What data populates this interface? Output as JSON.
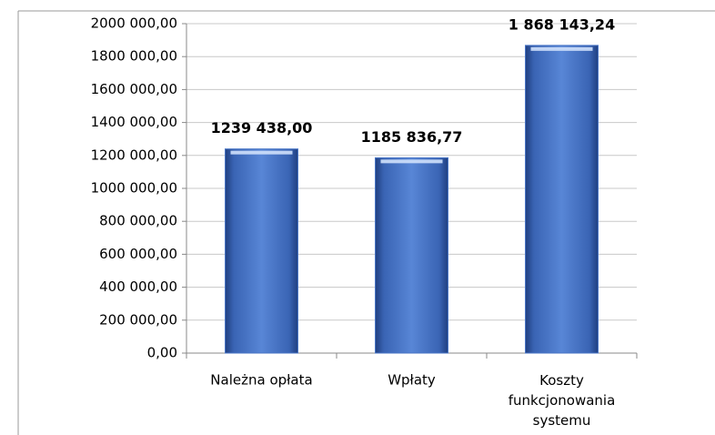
{
  "chart_data": {
    "type": "bar",
    "categories": [
      "Należna opłata",
      "Wpłaty",
      "Koszty funkcjonowania systemu"
    ],
    "values": [
      1239438.0,
      1185836.77,
      1868143.24
    ],
    "value_labels": [
      "1239 438,00",
      "1185 836,77",
      "1 868 143,24"
    ],
    "color": "#4a76c6",
    "ylim": [
      0,
      2000000
    ],
    "yticks": [
      {
        "value": 0,
        "label": "0,00"
      },
      {
        "value": 200000,
        "label": "200 000,00"
      },
      {
        "value": 400000,
        "label": "400 000,00"
      },
      {
        "value": 600000,
        "label": "600 000,00"
      },
      {
        "value": 800000,
        "label": "800 000,00"
      },
      {
        "value": 1000000,
        "label": "1000 000,00"
      },
      {
        "value": 1200000,
        "label": "1200 000,00"
      },
      {
        "value": 1400000,
        "label": "1400 000,00"
      },
      {
        "value": 1600000,
        "label": "1600 000,00"
      },
      {
        "value": 1800000,
        "label": "1800 000,00"
      },
      {
        "value": 2000000,
        "label": "2000 000,00"
      }
    ],
    "grid": true
  }
}
